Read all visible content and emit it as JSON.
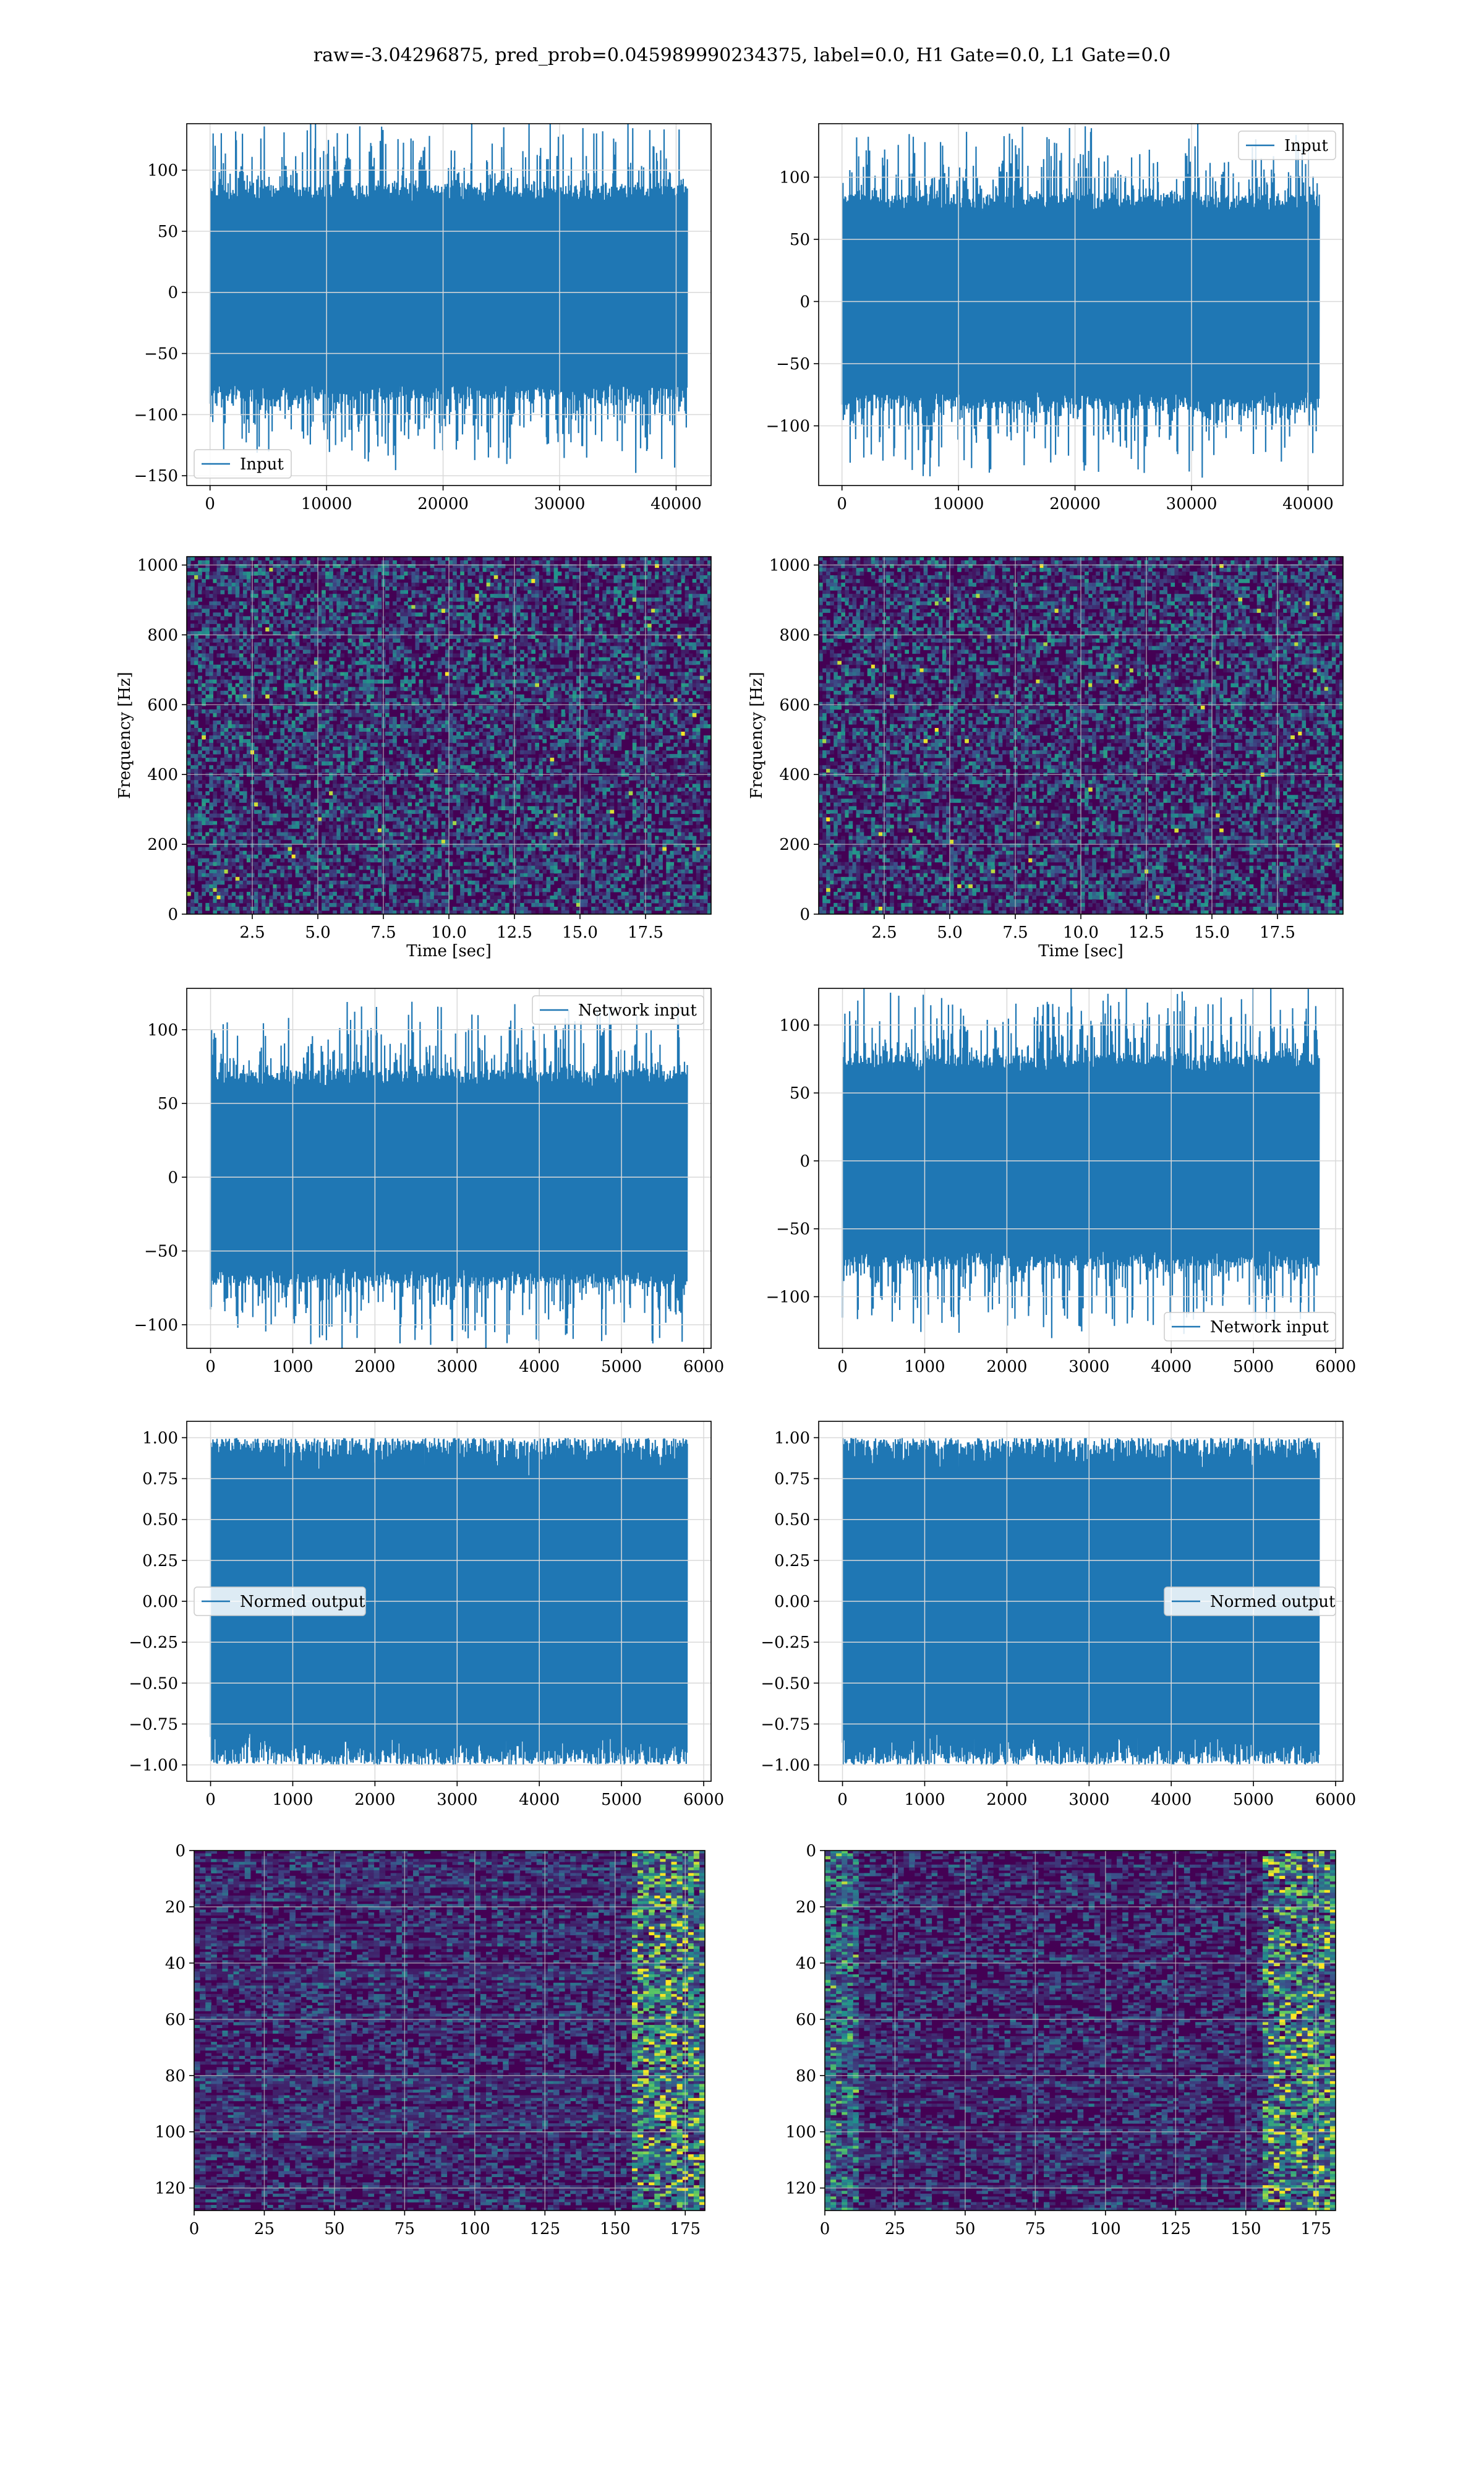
{
  "suptitle": "raw=-3.04296875, pred_prob=0.045989990234375, label=0.0, H1 Gate=0.0, L1 Gate=0.0",
  "colors": {
    "line": "#1f77b4",
    "grid": "#d9d9d9",
    "viridis_dark": "#440154",
    "viridis_mid": "#31688e",
    "viridis_green": "#35b779",
    "viridis_yellow": "#fde725"
  },
  "chart_data": [
    {
      "id": "r1c1",
      "type": "line",
      "title": "",
      "xlabel": "",
      "ylabel": "",
      "xlim": [
        -2000,
        43000
      ],
      "ylim": [
        -158,
        138
      ],
      "xticks": [
        0,
        10000,
        20000,
        30000,
        40000
      ],
      "yticks": [
        -150,
        -100,
        -50,
        0,
        50,
        100
      ],
      "series": [
        {
          "name": "Input",
          "n_samples": 40960,
          "approx_range": [
            -143,
            127
          ]
        }
      ],
      "legend": "lower left",
      "grid": true
    },
    {
      "id": "r1c2",
      "type": "line",
      "title": "",
      "xlabel": "",
      "ylabel": "",
      "xlim": [
        -2000,
        43000
      ],
      "ylim": [
        -148,
        143
      ],
      "xticks": [
        0,
        10000,
        20000,
        30000,
        40000
      ],
      "yticks": [
        -100,
        -50,
        0,
        50,
        100
      ],
      "series": [
        {
          "name": "Input",
          "n_samples": 40960,
          "approx_range": [
            -134,
            131
          ]
        }
      ],
      "legend": "upper right",
      "grid": true
    },
    {
      "id": "r2c1",
      "type": "heatmap",
      "title": "",
      "xlabel": "Time [sec]",
      "ylabel": "Frequency [Hz]",
      "xlim": [
        0,
        20
      ],
      "ylim": [
        0,
        1024
      ],
      "xticks": [
        2.5,
        5.0,
        7.5,
        10.0,
        12.5,
        15.0,
        17.5
      ],
      "yticks": [
        0,
        200,
        400,
        600,
        800,
        1000
      ],
      "colormap": "viridis",
      "grid": true
    },
    {
      "id": "r2c2",
      "type": "heatmap",
      "title": "",
      "xlabel": "Time [sec]",
      "ylabel": "Frequency [Hz]",
      "xlim": [
        0,
        20
      ],
      "ylim": [
        0,
        1024
      ],
      "xticks": [
        2.5,
        5.0,
        7.5,
        10.0,
        12.5,
        15.0,
        17.5
      ],
      "yticks": [
        0,
        200,
        400,
        600,
        800,
        1000
      ],
      "colormap": "viridis",
      "grid": true
    },
    {
      "id": "r3c1",
      "type": "line",
      "title": "",
      "xlabel": "",
      "ylabel": "",
      "xlim": [
        -290,
        6090
      ],
      "ylim": [
        -116,
        128
      ],
      "xticks": [
        0,
        1000,
        2000,
        3000,
        4000,
        5000,
        6000
      ],
      "yticks": [
        -100,
        -50,
        0,
        50,
        100
      ],
      "series": [
        {
          "name": "Network input",
          "n_samples": 5800,
          "approx_range": [
            -105,
            119
          ]
        }
      ],
      "legend": "upper right",
      "grid": true
    },
    {
      "id": "r3c2",
      "type": "line",
      "title": "",
      "xlabel": "",
      "ylabel": "",
      "xlim": [
        -290,
        6090
      ],
      "ylim": [
        -138,
        127
      ],
      "xticks": [
        0,
        1000,
        2000,
        3000,
        4000,
        5000,
        6000
      ],
      "yticks": [
        -100,
        -50,
        0,
        50,
        100
      ],
      "series": [
        {
          "name": "Network input",
          "n_samples": 5800,
          "approx_range": [
            -124,
            116
          ]
        }
      ],
      "legend": "lower right",
      "grid": true
    },
    {
      "id": "r4c1",
      "type": "line",
      "title": "",
      "xlabel": "",
      "ylabel": "",
      "xlim": [
        -290,
        6090
      ],
      "ylim": [
        -1.1,
        1.1
      ],
      "xticks": [
        0,
        1000,
        2000,
        3000,
        4000,
        5000,
        6000
      ],
      "yticks": [
        -1.0,
        -0.75,
        -0.5,
        -0.25,
        0.0,
        0.25,
        0.5,
        0.75,
        1.0
      ],
      "series": [
        {
          "name": "Normed output",
          "n_samples": 5800,
          "approx_range": [
            -1.0,
            1.0
          ]
        }
      ],
      "legend": "center left",
      "grid": true
    },
    {
      "id": "r4c2",
      "type": "line",
      "title": "",
      "xlabel": "",
      "ylabel": "",
      "xlim": [
        -290,
        6090
      ],
      "ylim": [
        -1.1,
        1.1
      ],
      "xticks": [
        0,
        1000,
        2000,
        3000,
        4000,
        5000,
        6000
      ],
      "yticks": [
        -1.0,
        -0.75,
        -0.5,
        -0.25,
        0.0,
        0.25,
        0.5,
        0.75,
        1.0
      ],
      "series": [
        {
          "name": "Normed output",
          "n_samples": 5800,
          "approx_range": [
            -1.0,
            1.0
          ]
        }
      ],
      "legend": "center right",
      "grid": true
    },
    {
      "id": "r5c1",
      "type": "heatmap",
      "title": "",
      "xlabel": "",
      "ylabel": "",
      "xlim": [
        0,
        182
      ],
      "ylim": [
        128,
        0
      ],
      "xticks": [
        0,
        25,
        50,
        75,
        100,
        125,
        150,
        175
      ],
      "yticks": [
        0,
        20,
        40,
        60,
        80,
        100,
        120
      ],
      "colormap": "viridis",
      "grid": true
    },
    {
      "id": "r5c2",
      "type": "heatmap",
      "title": "",
      "xlabel": "",
      "ylabel": "",
      "xlim": [
        0,
        182
      ],
      "ylim": [
        128,
        0
      ],
      "xticks": [
        0,
        25,
        50,
        75,
        100,
        125,
        150,
        175
      ],
      "yticks": [
        0,
        20,
        40,
        60,
        80,
        100,
        120
      ],
      "colormap": "viridis",
      "grid": true
    }
  ]
}
